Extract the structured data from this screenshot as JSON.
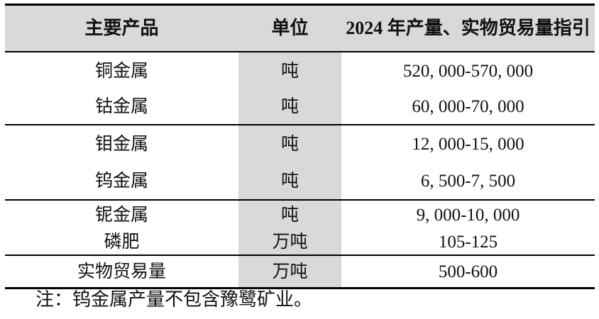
{
  "table": {
    "columns": [
      {
        "label": "主要产品"
      },
      {
        "label": "单位"
      },
      {
        "label": "2024 年产量、实物贸易量指引"
      }
    ],
    "rows": [
      {
        "product": "铜金属",
        "unit": "吨",
        "guidance": "520, 000-570, 000"
      },
      {
        "product": "钴金属",
        "unit": "吨",
        "guidance": "60, 000-70, 000"
      },
      {
        "product": "钼金属",
        "unit": "吨",
        "guidance": "12, 000-15, 000"
      },
      {
        "product": "钨金属",
        "unit": "吨",
        "guidance": "6, 500-7, 500"
      },
      {
        "product": "铌金属",
        "unit": "吨",
        "guidance": "9, 000-10, 000"
      },
      {
        "product": "磷肥",
        "unit": "万吨",
        "guidance": "105-125"
      },
      {
        "product": "实物贸易量",
        "unit": "万吨",
        "guidance": "500-600"
      }
    ]
  },
  "note": "注：钨金属产量不包含豫鹭矿业。",
  "colors": {
    "header_bg": "#d9d9d9",
    "unit_column_bg": "#d9d9d9",
    "border": "#000000",
    "text": "#111111"
  }
}
